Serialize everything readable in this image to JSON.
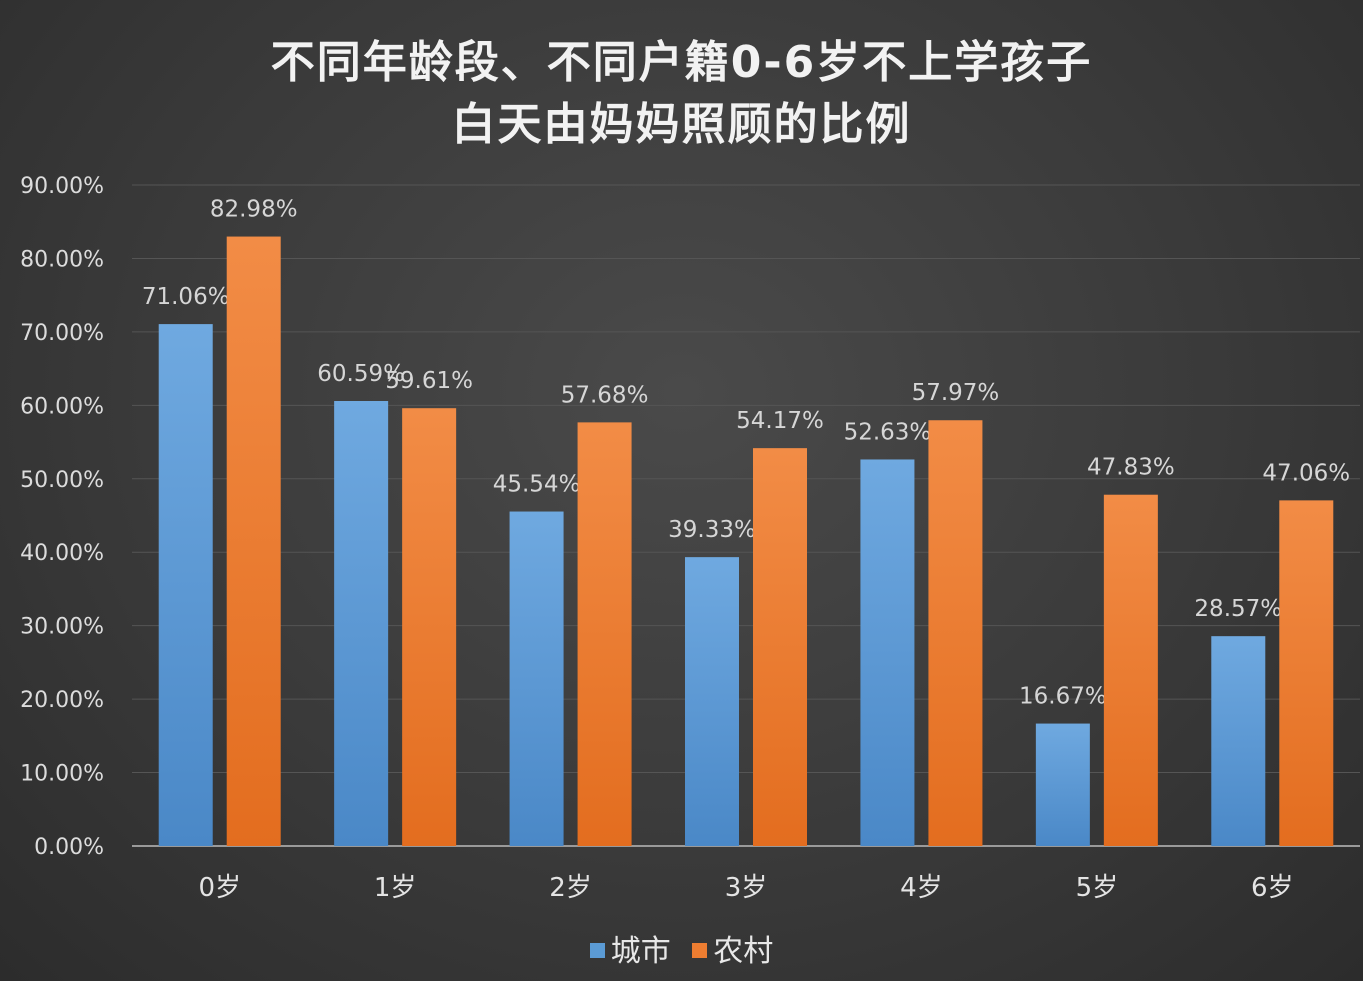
{
  "chart_data": {
    "type": "bar",
    "title_lines": [
      "不同年龄段、不同户籍0-6岁不上学孩子",
      "白天由妈妈照顾的比例"
    ],
    "categories": [
      "0岁",
      "1岁",
      "2岁",
      "3岁",
      "4岁",
      "5岁",
      "6岁"
    ],
    "series": [
      {
        "name": "城市",
        "color": "#5b9bd5",
        "values": [
          71.06,
          60.59,
          45.54,
          39.33,
          52.63,
          16.67,
          28.57
        ],
        "labels": [
          "71.06%",
          "60.59%",
          "45.54%",
          "39.33%",
          "52.63%",
          "16.67%",
          "28.57%"
        ]
      },
      {
        "name": "农村",
        "color": "#ed7d31",
        "values": [
          82.98,
          59.61,
          57.68,
          54.17,
          57.97,
          47.83,
          47.06
        ],
        "labels": [
          "82.98%",
          "59.61%",
          "57.68%",
          "54.17%",
          "57.97%",
          "47.83%",
          "47.06%"
        ]
      }
    ],
    "y_ticks": [
      "0.00%",
      "10.00%",
      "20.00%",
      "30.00%",
      "40.00%",
      "50.00%",
      "60.00%",
      "70.00%",
      "80.00%",
      "90.00%"
    ],
    "ylim": [
      0,
      90
    ],
    "grid": true,
    "legend_position": "bottom"
  }
}
